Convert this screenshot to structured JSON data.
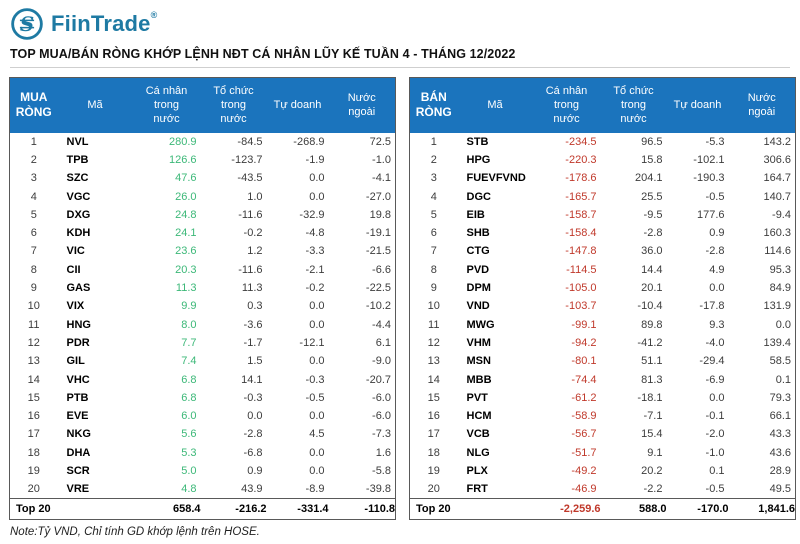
{
  "brand": {
    "name": "FiinTrade",
    "registered": "®"
  },
  "title": "TOP MUA/BÁN RÒNG KHỚP LỆNH NĐT CÁ NHÂN LŨY KẾ TUẦN 4 - THÁNG 12/2022",
  "note": "Note:Tỷ VND,  Chỉ tính GD khớp lệnh trên HOSE.",
  "colors": {
    "header_bg": "#1b74bd",
    "buy": "#3cb878",
    "sell": "#c0392b",
    "brand": "#1e7aa3",
    "border": "#595959"
  },
  "tables": [
    {
      "group_label": "MUA RÒNG",
      "value_color": "#3cb878",
      "columns": [
        "Mã",
        "Cá nhân trong nước",
        "Tổ chức trong nước",
        "Tự doanh",
        "Nước ngoài"
      ],
      "rows": [
        {
          "rank": 1,
          "ticker": "NVL",
          "values": [
            "280.9",
            "-84.5",
            "-268.9",
            "72.5"
          ]
        },
        {
          "rank": 2,
          "ticker": "TPB",
          "values": [
            "126.6",
            "-123.7",
            "-1.9",
            "-1.0"
          ]
        },
        {
          "rank": 3,
          "ticker": "SZC",
          "values": [
            "47.6",
            "-43.5",
            "0.0",
            "-4.1"
          ]
        },
        {
          "rank": 4,
          "ticker": "VGC",
          "values": [
            "26.0",
            "1.0",
            "0.0",
            "-27.0"
          ]
        },
        {
          "rank": 5,
          "ticker": "DXG",
          "values": [
            "24.8",
            "-11.6",
            "-32.9",
            "19.8"
          ]
        },
        {
          "rank": 6,
          "ticker": "KDH",
          "values": [
            "24.1",
            "-0.2",
            "-4.8",
            "-19.1"
          ]
        },
        {
          "rank": 7,
          "ticker": "VIC",
          "values": [
            "23.6",
            "1.2",
            "-3.3",
            "-21.5"
          ]
        },
        {
          "rank": 8,
          "ticker": "CII",
          "values": [
            "20.3",
            "-11.6",
            "-2.1",
            "-6.6"
          ]
        },
        {
          "rank": 9,
          "ticker": "GAS",
          "values": [
            "11.3",
            "11.3",
            "-0.2",
            "-22.5"
          ]
        },
        {
          "rank": 10,
          "ticker": "VIX",
          "values": [
            "9.9",
            "0.3",
            "0.0",
            "-10.2"
          ]
        },
        {
          "rank": 11,
          "ticker": "HNG",
          "values": [
            "8.0",
            "-3.6",
            "0.0",
            "-4.4"
          ]
        },
        {
          "rank": 12,
          "ticker": "PDR",
          "values": [
            "7.7",
            "-1.7",
            "-12.1",
            "6.1"
          ]
        },
        {
          "rank": 13,
          "ticker": "GIL",
          "values": [
            "7.4",
            "1.5",
            "0.0",
            "-9.0"
          ]
        },
        {
          "rank": 14,
          "ticker": "VHC",
          "values": [
            "6.8",
            "14.1",
            "-0.3",
            "-20.7"
          ]
        },
        {
          "rank": 15,
          "ticker": "PTB",
          "values": [
            "6.8",
            "-0.3",
            "-0.5",
            "-6.0"
          ]
        },
        {
          "rank": 16,
          "ticker": "EVE",
          "values": [
            "6.0",
            "0.0",
            "0.0",
            "-6.0"
          ]
        },
        {
          "rank": 17,
          "ticker": "NKG",
          "values": [
            "5.6",
            "-2.8",
            "4.5",
            "-7.3"
          ]
        },
        {
          "rank": 18,
          "ticker": "DHA",
          "values": [
            "5.3",
            "-6.8",
            "0.0",
            "1.6"
          ]
        },
        {
          "rank": 19,
          "ticker": "SCR",
          "values": [
            "5.0",
            "0.9",
            "0.0",
            "-5.8"
          ]
        },
        {
          "rank": 20,
          "ticker": "VRE",
          "values": [
            "4.8",
            "43.9",
            "-8.9",
            "-39.8"
          ]
        }
      ],
      "total": {
        "label": "Top 20",
        "values": [
          "658.4",
          "-216.2",
          "-331.4",
          "-110.8"
        ],
        "first_value_colored": false
      }
    },
    {
      "group_label": "BÁN RÒNG",
      "value_color": "#c0392b",
      "columns": [
        "Mã",
        "Cá nhân trong nước",
        "Tổ chức trong nước",
        "Tự doanh",
        "Nước ngoài"
      ],
      "rows": [
        {
          "rank": 1,
          "ticker": "STB",
          "values": [
            "-234.5",
            "96.5",
            "-5.3",
            "143.2"
          ]
        },
        {
          "rank": 2,
          "ticker": "HPG",
          "values": [
            "-220.3",
            "15.8",
            "-102.1",
            "306.6"
          ]
        },
        {
          "rank": 3,
          "ticker": "FUEVFVND",
          "values": [
            "-178.6",
            "204.1",
            "-190.3",
            "164.7"
          ]
        },
        {
          "rank": 4,
          "ticker": "DGC",
          "values": [
            "-165.7",
            "25.5",
            "-0.5",
            "140.7"
          ]
        },
        {
          "rank": 5,
          "ticker": "EIB",
          "values": [
            "-158.7",
            "-9.5",
            "177.6",
            "-9.4"
          ]
        },
        {
          "rank": 6,
          "ticker": "SHB",
          "values": [
            "-158.4",
            "-2.8",
            "0.9",
            "160.3"
          ]
        },
        {
          "rank": 7,
          "ticker": "CTG",
          "values": [
            "-147.8",
            "36.0",
            "-2.8",
            "114.6"
          ]
        },
        {
          "rank": 8,
          "ticker": "PVD",
          "values": [
            "-114.5",
            "14.4",
            "4.9",
            "95.3"
          ]
        },
        {
          "rank": 9,
          "ticker": "DPM",
          "values": [
            "-105.0",
            "20.1",
            "0.0",
            "84.9"
          ]
        },
        {
          "rank": 10,
          "ticker": "VND",
          "values": [
            "-103.7",
            "-10.4",
            "-17.8",
            "131.9"
          ]
        },
        {
          "rank": 11,
          "ticker": "MWG",
          "values": [
            "-99.1",
            "89.8",
            "9.3",
            "0.0"
          ]
        },
        {
          "rank": 12,
          "ticker": "VHM",
          "values": [
            "-94.2",
            "-41.2",
            "-4.0",
            "139.4"
          ]
        },
        {
          "rank": 13,
          "ticker": "MSN",
          "values": [
            "-80.1",
            "51.1",
            "-29.4",
            "58.5"
          ]
        },
        {
          "rank": 14,
          "ticker": "MBB",
          "values": [
            "-74.4",
            "81.3",
            "-6.9",
            "0.1"
          ]
        },
        {
          "rank": 15,
          "ticker": "PVT",
          "values": [
            "-61.2",
            "-18.1",
            "0.0",
            "79.3"
          ]
        },
        {
          "rank": 16,
          "ticker": "HCM",
          "values": [
            "-58.9",
            "-7.1",
            "-0.1",
            "66.1"
          ]
        },
        {
          "rank": 17,
          "ticker": "VCB",
          "values": [
            "-56.7",
            "15.4",
            "-2.0",
            "43.3"
          ]
        },
        {
          "rank": 18,
          "ticker": "NLG",
          "values": [
            "-51.7",
            "9.1",
            "-1.0",
            "43.6"
          ]
        },
        {
          "rank": 19,
          "ticker": "PLX",
          "values": [
            "-49.2",
            "20.2",
            "0.1",
            "28.9"
          ]
        },
        {
          "rank": 20,
          "ticker": "FRT",
          "values": [
            "-46.9",
            "-2.2",
            "-0.5",
            "49.5"
          ]
        }
      ],
      "total": {
        "label": "Top 20",
        "values": [
          "-2,259.6",
          "588.0",
          "-170.0",
          "1,841.6"
        ],
        "first_value_colored": true
      }
    }
  ]
}
